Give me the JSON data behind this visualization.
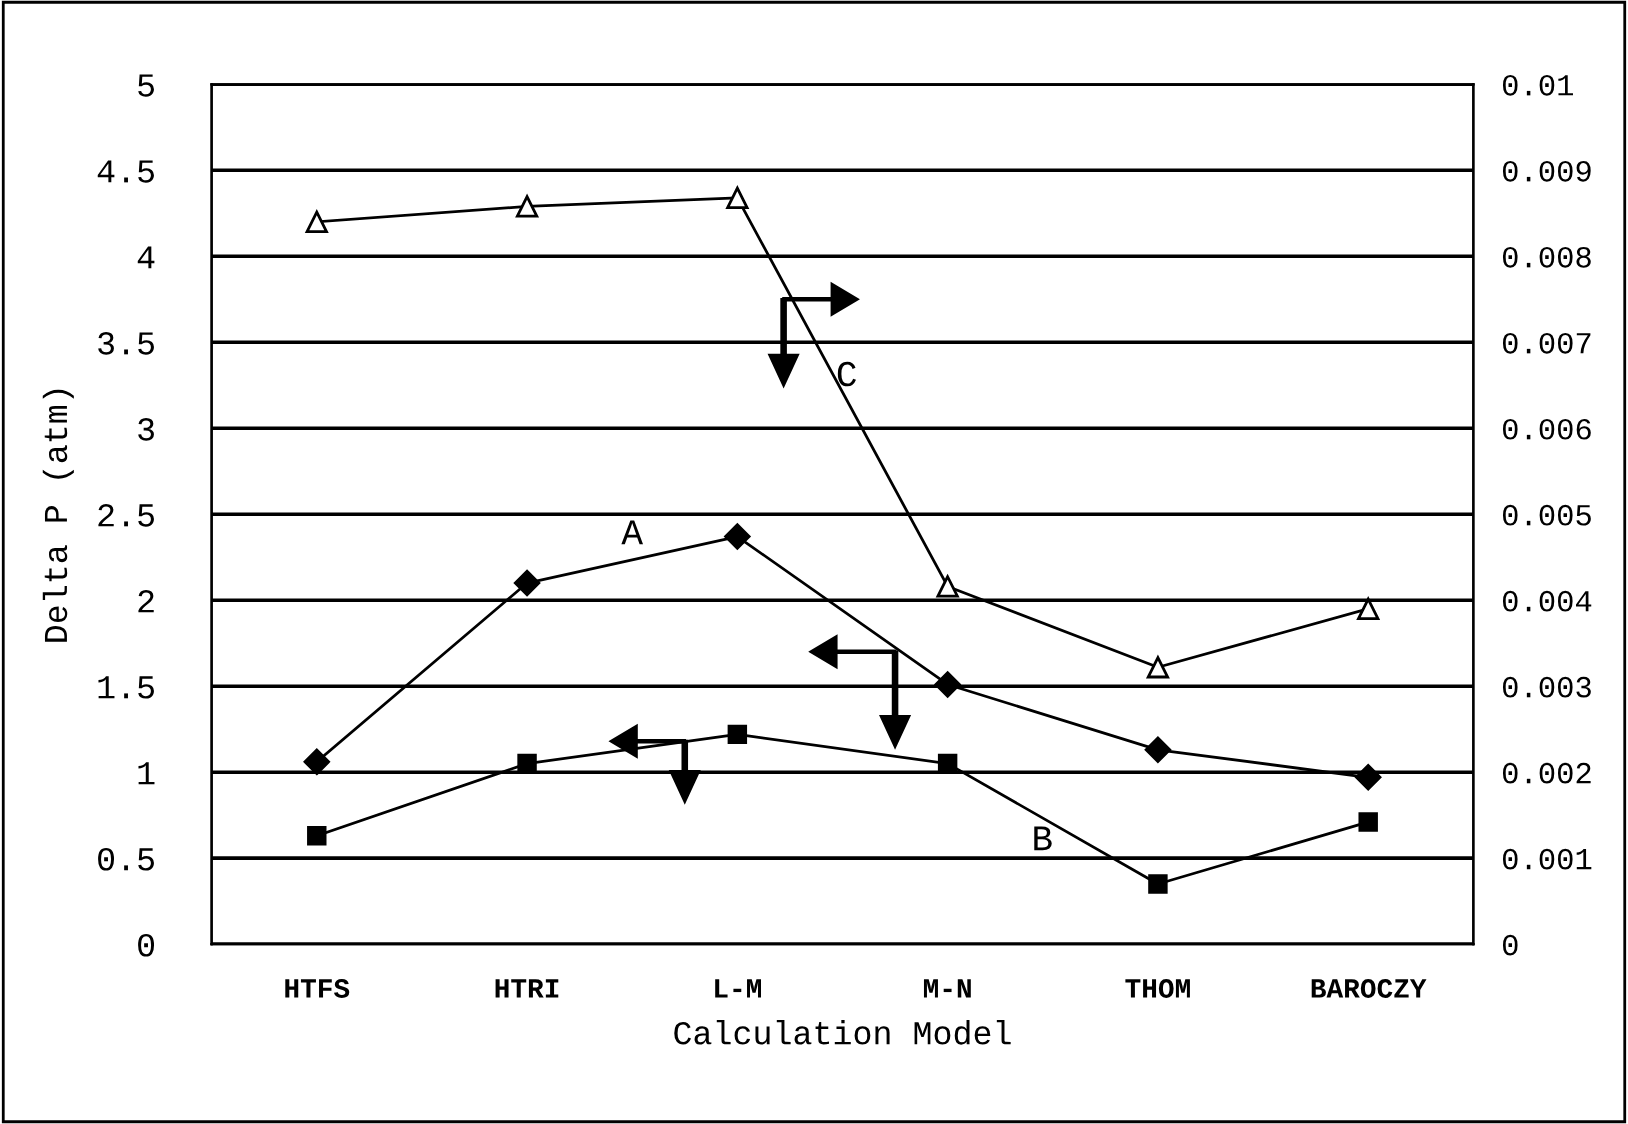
{
  "chart_data": {
    "type": "line",
    "xlabel": "Calculation Model",
    "ylabel": "Delta P (atm)",
    "categories": [
      "HTFS",
      "HTRI",
      "L-M",
      "M-N",
      "THOM",
      "BAROCZY"
    ],
    "series": [
      {
        "name": "A",
        "color": "#000000",
        "marker": "diamond",
        "values": [
          1.06,
          2.1,
          2.37,
          1.51,
          1.13,
          0.97
        ]
      },
      {
        "name": "B",
        "color": "#000000",
        "marker": "square",
        "values": [
          0.63,
          1.05,
          1.22,
          1.05,
          0.35,
          0.71
        ]
      },
      {
        "name": "C",
        "color": "#000000",
        "marker": "triangle",
        "axis": "y2",
        "values": [
          0.0084,
          0.00858,
          0.00868,
          0.00416,
          0.00322,
          0.0039
        ]
      }
    ],
    "ylim": [
      0,
      5
    ],
    "yticks": [
      0,
      {
        "value": 0.5,
        "label": "0.5"
      },
      1,
      {
        "value": 1.5,
        "label": "1.5"
      },
      2,
      {
        "value": 2.5,
        "label": "2.5"
      },
      3,
      {
        "value": 3.5,
        "label": "3.5"
      },
      4,
      {
        "value": 4.5,
        "label": "4.5"
      },
      5
    ],
    "y2lim": [
      0,
      0.01
    ],
    "y2ticks": [
      0,
      0.001,
      0.002,
      0.003,
      0.004,
      0.005,
      0.006,
      0.007,
      0.008,
      0.009,
      0.01
    ],
    "grid": "y",
    "line_style": "solid",
    "legend": false
  }
}
